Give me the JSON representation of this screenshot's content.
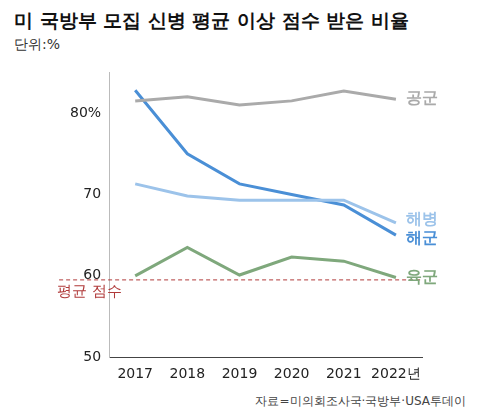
{
  "chart_data": {
    "type": "line",
    "title": "미 국방부 모집 신병 평균 이상 점수 받은 비율",
    "subtitle": "단위:%",
    "source": "자료=미의회조사국·국방부·USA투데이",
    "categories": [
      "2017",
      "2018",
      "2019",
      "2020",
      "2021",
      "2022년"
    ],
    "series": [
      {
        "name": "공군",
        "color": "#aaaaaa",
        "values": [
          81.5,
          82.0,
          81.0,
          81.5,
          82.7,
          81.7
        ]
      },
      {
        "name": "해병",
        "color": "#9cc3ea",
        "values": [
          71.3,
          69.8,
          69.3,
          69.3,
          69.3,
          66.5
        ]
      },
      {
        "name": "해군",
        "color": "#4a8fd6",
        "values": [
          82.8,
          75.0,
          71.3,
          70.0,
          68.7,
          65.0
        ]
      },
      {
        "name": "육군",
        "color": "#7fa87c",
        "values": [
          60.0,
          63.5,
          60.1,
          62.3,
          61.8,
          59.8
        ]
      }
    ],
    "reference_line": {
      "value": 59.5,
      "label": "평균 점수",
      "color": "#b03a3a",
      "line_style": "dashed"
    },
    "ylim": [
      50,
      85
    ],
    "yticks": [
      50,
      60,
      70,
      {
        "value": 80,
        "label": "80%"
      }
    ],
    "grid": false,
    "marker": "none",
    "legend": "none"
  }
}
